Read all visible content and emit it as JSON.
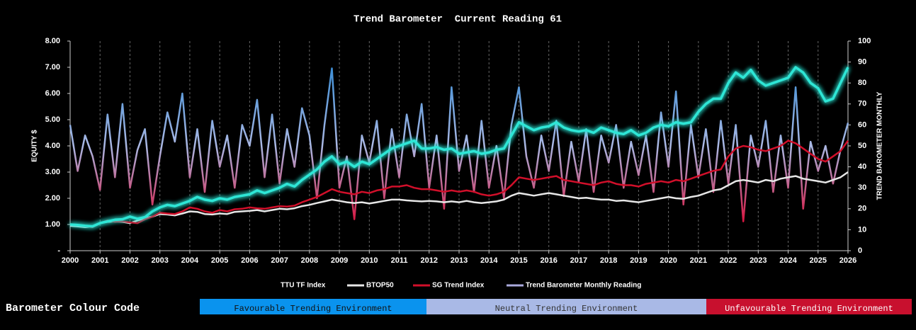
{
  "chart_data": {
    "type": "line",
    "title": "Trend Barometer  Current Reading 61",
    "y_label": "EQUITY $",
    "y2_label": "TREND BAROMETER MONTHLY",
    "grid": true,
    "xlim": [
      2000,
      2026
    ],
    "xticks": [
      2000,
      2001,
      2002,
      2003,
      2004,
      2005,
      2006,
      2007,
      2008,
      2009,
      2010,
      2011,
      2012,
      2013,
      2014,
      2015,
      2016,
      2017,
      2018,
      2019,
      2020,
      2021,
      2022,
      2023,
      2024,
      2025,
      2026
    ],
    "ylim": [
      0,
      8
    ],
    "yticks": [
      {
        "value": 0,
        "label": "-"
      },
      {
        "value": 1,
        "label": "1.00"
      },
      {
        "value": 2,
        "label": "2.00"
      },
      {
        "value": 3,
        "label": "3.00"
      },
      {
        "value": 4,
        "label": "4.00"
      },
      {
        "value": 5,
        "label": "5.00"
      },
      {
        "value": 6,
        "label": "6.00"
      },
      {
        "value": 7,
        "label": "7.00"
      },
      {
        "value": 8,
        "label": "8.00"
      }
    ],
    "y2lim": [
      0,
      100
    ],
    "y2ticks": [
      0,
      10,
      20,
      30,
      40,
      50,
      60,
      70,
      80,
      90,
      100
    ],
    "x": [
      2000,
      2000.25,
      2000.5,
      2000.75,
      2001,
      2001.25,
      2001.5,
      2001.75,
      2002,
      2002.25,
      2002.5,
      2002.75,
      2003,
      2003.25,
      2003.5,
      2003.75,
      2004,
      2004.25,
      2004.5,
      2004.75,
      2005,
      2005.25,
      2005.5,
      2005.75,
      2006,
      2006.25,
      2006.5,
      2006.75,
      2007,
      2007.25,
      2007.5,
      2007.75,
      2008,
      2008.25,
      2008.5,
      2008.75,
      2009,
      2009.25,
      2009.5,
      2009.75,
      2010,
      2010.25,
      2010.5,
      2010.75,
      2011,
      2011.25,
      2011.5,
      2011.75,
      2012,
      2012.25,
      2012.5,
      2012.75,
      2013,
      2013.25,
      2013.5,
      2013.75,
      2014,
      2014.25,
      2014.5,
      2014.75,
      2015,
      2015.25,
      2015.5,
      2015.75,
      2016,
      2016.25,
      2016.5,
      2016.75,
      2017,
      2017.25,
      2017.5,
      2017.75,
      2018,
      2018.25,
      2018.5,
      2018.75,
      2019,
      2019.25,
      2019.5,
      2019.75,
      2020,
      2020.25,
      2020.5,
      2020.75,
      2021,
      2021.25,
      2021.5,
      2021.75,
      2022,
      2022.25,
      2022.5,
      2022.75,
      2023,
      2023.25,
      2023.5,
      2023.75,
      2024,
      2024.25,
      2024.5,
      2024.75,
      2025,
      2025.25,
      2025.5,
      2025.75,
      2026
    ],
    "series": [
      {
        "name": "TTU TF Index",
        "color": "#2ee6d6",
        "glow": true,
        "values": [
          1.0,
          0.98,
          0.95,
          0.93,
          1.05,
          1.12,
          1.18,
          1.2,
          1.3,
          1.22,
          1.28,
          1.5,
          1.65,
          1.75,
          1.7,
          1.8,
          1.9,
          2.05,
          1.95,
          1.9,
          2.0,
          1.95,
          2.05,
          2.1,
          2.15,
          2.3,
          2.2,
          2.3,
          2.4,
          2.55,
          2.45,
          2.7,
          2.9,
          3.1,
          3.4,
          3.6,
          3.3,
          3.4,
          3.2,
          3.4,
          3.3,
          3.5,
          3.7,
          3.9,
          4.0,
          4.1,
          4.2,
          3.9,
          3.9,
          3.95,
          3.85,
          3.9,
          3.7,
          3.75,
          3.8,
          3.7,
          3.75,
          3.85,
          3.9,
          4.4,
          4.9,
          4.75,
          4.6,
          4.7,
          4.75,
          4.9,
          4.7,
          4.6,
          4.55,
          4.6,
          4.5,
          4.7,
          4.6,
          4.5,
          4.45,
          4.6,
          4.4,
          4.5,
          4.7,
          4.8,
          4.75,
          4.9,
          4.85,
          4.9,
          5.3,
          5.6,
          5.8,
          5.8,
          6.4,
          6.8,
          6.6,
          6.9,
          6.5,
          6.3,
          6.4,
          6.5,
          6.6,
          7.0,
          6.8,
          6.4,
          6.2,
          5.7,
          5.8,
          6.4,
          7.0
        ]
      },
      {
        "name": "BTOP50",
        "color": "#e6e6e6",
        "values": [
          0.95,
          0.93,
          0.9,
          0.92,
          1.05,
          1.1,
          1.12,
          1.1,
          1.05,
          1.15,
          1.25,
          1.3,
          1.4,
          1.38,
          1.35,
          1.42,
          1.5,
          1.48,
          1.4,
          1.38,
          1.42,
          1.4,
          1.48,
          1.5,
          1.52,
          1.55,
          1.5,
          1.55,
          1.6,
          1.58,
          1.62,
          1.7,
          1.75,
          1.82,
          1.88,
          1.95,
          1.9,
          1.85,
          1.82,
          1.85,
          1.8,
          1.85,
          1.9,
          1.95,
          1.95,
          1.92,
          1.9,
          1.88,
          1.9,
          1.88,
          1.85,
          1.88,
          1.85,
          1.9,
          1.85,
          1.82,
          1.85,
          1.88,
          1.95,
          2.1,
          2.2,
          2.15,
          2.1,
          2.15,
          2.2,
          2.15,
          2.1,
          2.05,
          2.0,
          2.02,
          1.98,
          1.95,
          1.95,
          1.9,
          1.92,
          1.88,
          1.85,
          1.9,
          1.95,
          2.0,
          2.05,
          2.0,
          1.98,
          2.05,
          2.1,
          2.2,
          2.3,
          2.35,
          2.5,
          2.65,
          2.7,
          2.65,
          2.6,
          2.7,
          2.65,
          2.75,
          2.8,
          2.85,
          2.75,
          2.7,
          2.65,
          2.6,
          2.7,
          2.8,
          3.0
        ]
      },
      {
        "name": "SG Trend Index",
        "color": "#d10f2a",
        "values": [
          1.0,
          0.97,
          0.93,
          0.9,
          1.05,
          1.15,
          1.1,
          1.12,
          1.08,
          1.05,
          1.2,
          1.3,
          1.45,
          1.42,
          1.4,
          1.5,
          1.65,
          1.6,
          1.5,
          1.45,
          1.55,
          1.5,
          1.58,
          1.6,
          1.65,
          1.62,
          1.6,
          1.65,
          1.7,
          1.68,
          1.72,
          1.85,
          1.95,
          2.05,
          2.2,
          2.35,
          2.25,
          2.2,
          2.15,
          2.25,
          2.2,
          2.3,
          2.35,
          2.45,
          2.45,
          2.5,
          2.4,
          2.35,
          2.35,
          2.3,
          2.25,
          2.3,
          2.25,
          2.3,
          2.25,
          2.15,
          2.1,
          2.15,
          2.25,
          2.5,
          2.8,
          2.75,
          2.7,
          2.75,
          2.8,
          2.85,
          2.7,
          2.65,
          2.6,
          2.55,
          2.5,
          2.6,
          2.65,
          2.55,
          2.5,
          2.5,
          2.45,
          2.55,
          2.6,
          2.65,
          2.6,
          2.7,
          2.65,
          2.75,
          2.85,
          2.95,
          3.05,
          3.1,
          3.6,
          3.9,
          4.0,
          3.95,
          3.85,
          3.8,
          3.9,
          4.0,
          4.2,
          4.1,
          3.9,
          3.7,
          3.5,
          3.4,
          3.6,
          3.8,
          4.2
        ]
      },
      {
        "name": "Trend Barometer Monthly Reading",
        "color": "#a9a9dc",
        "axis": "y2",
        "gradient": [
          "#3f8fd6",
          "#aab8e4",
          "#d8143e"
        ],
        "values": [
          60,
          38,
          55,
          45,
          29,
          65,
          35,
          70,
          30,
          48,
          58,
          22,
          45,
          66,
          52,
          75,
          35,
          58,
          28,
          62,
          40,
          55,
          30,
          60,
          50,
          72,
          35,
          65,
          32,
          58,
          40,
          68,
          55,
          25,
          60,
          87,
          30,
          45,
          15,
          55,
          42,
          62,
          25,
          58,
          35,
          65,
          45,
          70,
          30,
          55,
          20,
          78,
          38,
          55,
          28,
          62,
          30,
          50,
          25,
          60,
          78,
          45,
          30,
          55,
          38,
          62,
          26,
          52,
          33,
          58,
          28,
          55,
          42,
          60,
          30,
          52,
          36,
          55,
          28,
          66,
          40,
          76,
          22,
          60,
          35,
          58,
          28,
          62,
          32,
          60,
          14,
          55,
          40,
          62,
          28,
          55,
          30,
          78,
          20,
          52,
          38,
          50,
          32,
          48,
          61
        ]
      }
    ],
    "colour_code": {
      "title": "Barometer Colour Code",
      "items": [
        {
          "label": "Favourable Trending Environment",
          "color": "#0a93ee",
          "text_color": "#111111"
        },
        {
          "label": "Neutral Trending Environment",
          "color": "#a9b9e6",
          "text_color": "#333333"
        },
        {
          "label": "Unfavourable Trending Environment",
          "color": "#c8102e",
          "text_color": "#ffffff"
        }
      ]
    }
  }
}
